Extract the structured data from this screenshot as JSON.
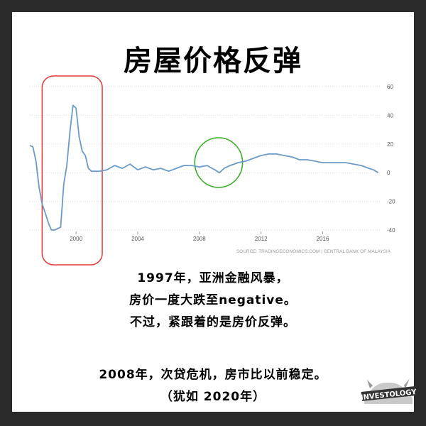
{
  "title": "房屋价格反弹",
  "chart_data": {
    "type": "line",
    "title": "",
    "xlabel": "",
    "ylabel": "",
    "x_ticks": [
      "2000",
      "2004",
      "2008",
      "2012",
      "2016"
    ],
    "y_ticks": [
      "60",
      "40",
      "20",
      "0",
      "-20",
      "-40"
    ],
    "ylim": [
      -40,
      60
    ],
    "xlim": [
      1997.0,
      2019.8
    ],
    "grid": "horizontal dotted",
    "source": "SOURCE: TRADINGECONOMICS.COM | CENTRAL BANK OF MALAYSIA",
    "series": [
      {
        "color": "#6a9bc8",
        "x": [
          1997.0,
          1997.2,
          1997.4,
          1997.6,
          1997.8,
          1998.0,
          1998.2,
          1998.4,
          1998.6,
          1998.8,
          1999.0,
          1999.2,
          1999.4,
          1999.6,
          1999.8,
          2000.0,
          2000.2,
          2000.4,
          2000.6,
          2000.8,
          2001.0,
          2001.5,
          2002.0,
          2002.5,
          2003.0,
          2003.5,
          2004.0,
          2004.5,
          2005.0,
          2005.5,
          2006.0,
          2006.5,
          2007.0,
          2007.5,
          2008.0,
          2008.5,
          2009.0,
          2009.3,
          2009.6,
          2010.0,
          2010.5,
          2011.0,
          2011.5,
          2012.0,
          2012.5,
          2013.0,
          2013.5,
          2014.0,
          2014.5,
          2015.0,
          2015.5,
          2016.0,
          2016.5,
          2017.0,
          2017.5,
          2018.0,
          2018.5,
          2019.0,
          2019.3,
          2019.6
        ],
        "y": [
          19,
          18,
          8,
          -10,
          -22,
          -28,
          -35,
          -40,
          -40,
          -39,
          -38,
          -8,
          5,
          28,
          47,
          45,
          25,
          15,
          12,
          3,
          1,
          1,
          2,
          5,
          3,
          6,
          2,
          4,
          2,
          3,
          1,
          3,
          5,
          5,
          4,
          5,
          2,
          0,
          3,
          5,
          7,
          8,
          10,
          12,
          13,
          13,
          12,
          11,
          9,
          9,
          8,
          7,
          7,
          7,
          7,
          6,
          5,
          3,
          2,
          0
        ]
      }
    ],
    "annotations": [
      {
        "shape": "rounded-rectangle",
        "color": "#e53935",
        "x_range": [
          1997.8,
          2001.7
        ]
      },
      {
        "shape": "circle",
        "color": "#33aa22",
        "x_range": [
          2007.7,
          2010.8
        ]
      }
    ]
  },
  "captions": [
    "1997年，亚洲金融风暴，",
    "房价一度大跌至negative。",
    "不过，紧跟着的是房价反弹。",
    "2008年，次贷危机，房市比以前稳定。",
    "（犹如 2020年）"
  ],
  "logo": {
    "text": "INVESTOLOGY"
  }
}
